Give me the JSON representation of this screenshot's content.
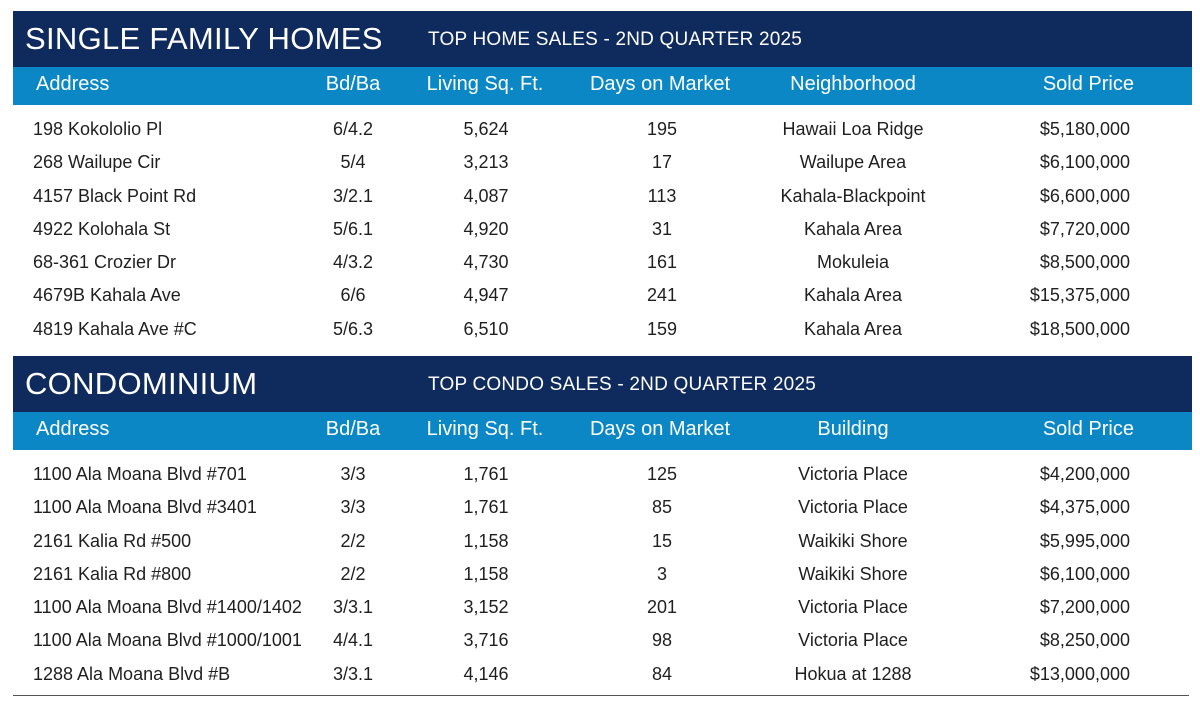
{
  "single_family": {
    "title": "SINGLE FAMILY HOMES",
    "subtitle": "TOP HOME SALES - 2ND QUARTER 2025",
    "headers": {
      "address": "Address",
      "bdba": "Bd/Ba",
      "sqft": "Living Sq. Ft.",
      "days": "Days on Market",
      "location": "Neighborhood",
      "price": "Sold Price"
    },
    "rows": [
      {
        "address": "198 Kokololio Pl",
        "bdba": "6/4.2",
        "sqft": "5,624",
        "days": "195",
        "location": "Hawaii Loa Ridge",
        "price": "$5,180,000"
      },
      {
        "address": "268 Wailupe Cir",
        "bdba": "5/4",
        "sqft": "3,213",
        "days": "17",
        "location": "Wailupe Area",
        "price": "$6,100,000"
      },
      {
        "address": "4157 Black Point Rd",
        "bdba": "3/2.1",
        "sqft": "4,087",
        "days": "113",
        "location": "Kahala-Blackpoint",
        "price": "$6,600,000"
      },
      {
        "address": "4922 Kolohala St",
        "bdba": "5/6.1",
        "sqft": "4,920",
        "days": "31",
        "location": "Kahala Area",
        "price": "$7,720,000"
      },
      {
        "address": "68-361 Crozier Dr",
        "bdba": "4/3.2",
        "sqft": "4,730",
        "days": "161",
        "location": "Mokuleia",
        "price": "$8,500,000"
      },
      {
        "address": "4679B Kahala Ave",
        "bdba": "6/6",
        "sqft": "4,947",
        "days": "241",
        "location": "Kahala Area",
        "price": "$15,375,000"
      },
      {
        "address": "4819 Kahala Ave #C",
        "bdba": "5/6.3",
        "sqft": "6,510",
        "days": "159",
        "location": "Kahala Area",
        "price": "$18,500,000"
      }
    ]
  },
  "condominium": {
    "title": "CONDOMINIUM",
    "subtitle": "TOP CONDO SALES - 2ND QUARTER 2025",
    "headers": {
      "address": "Address",
      "bdba": "Bd/Ba",
      "sqft": "Living Sq. Ft.",
      "days": "Days on Market",
      "location": "Building",
      "price": "Sold Price"
    },
    "rows": [
      {
        "address": "1100 Ala Moana Blvd #701",
        "bdba": "3/3",
        "sqft": "1,761",
        "days": "125",
        "location": "Victoria Place",
        "price": "$4,200,000"
      },
      {
        "address": "1100 Ala Moana Blvd #3401",
        "bdba": "3/3",
        "sqft": "1,761",
        "days": "85",
        "location": "Victoria Place",
        "price": "$4,375,000"
      },
      {
        "address": "2161 Kalia Rd #500",
        "bdba": "2/2",
        "sqft": "1,158",
        "days": "15",
        "location": "Waikiki Shore",
        "price": "$5,995,000"
      },
      {
        "address": "2161 Kalia Rd #800",
        "bdba": "2/2",
        "sqft": "1,158",
        "days": "3",
        "location": "Waikiki Shore",
        "price": "$6,100,000"
      },
      {
        "address": "1100 Ala Moana Blvd #1400/1402",
        "bdba": "3/3.1",
        "sqft": "3,152",
        "days": "201",
        "location": "Victoria Place",
        "price": "$7,200,000"
      },
      {
        "address": "1100 Ala Moana Blvd #1000/1001",
        "bdba": "4/4.1",
        "sqft": "3,716",
        "days": "98",
        "location": "Victoria Place",
        "price": "$8,250,000"
      },
      {
        "address": "1288 Ala Moana Blvd #B",
        "bdba": "3/3.1",
        "sqft": "4,146",
        "days": "84",
        "location": "Hokua at 1288",
        "price": "$13,000,000"
      }
    ]
  },
  "colors": {
    "title_bar": "#0f2a5c",
    "header_row": "#0a87c4",
    "text": "#1f1f1f"
  }
}
